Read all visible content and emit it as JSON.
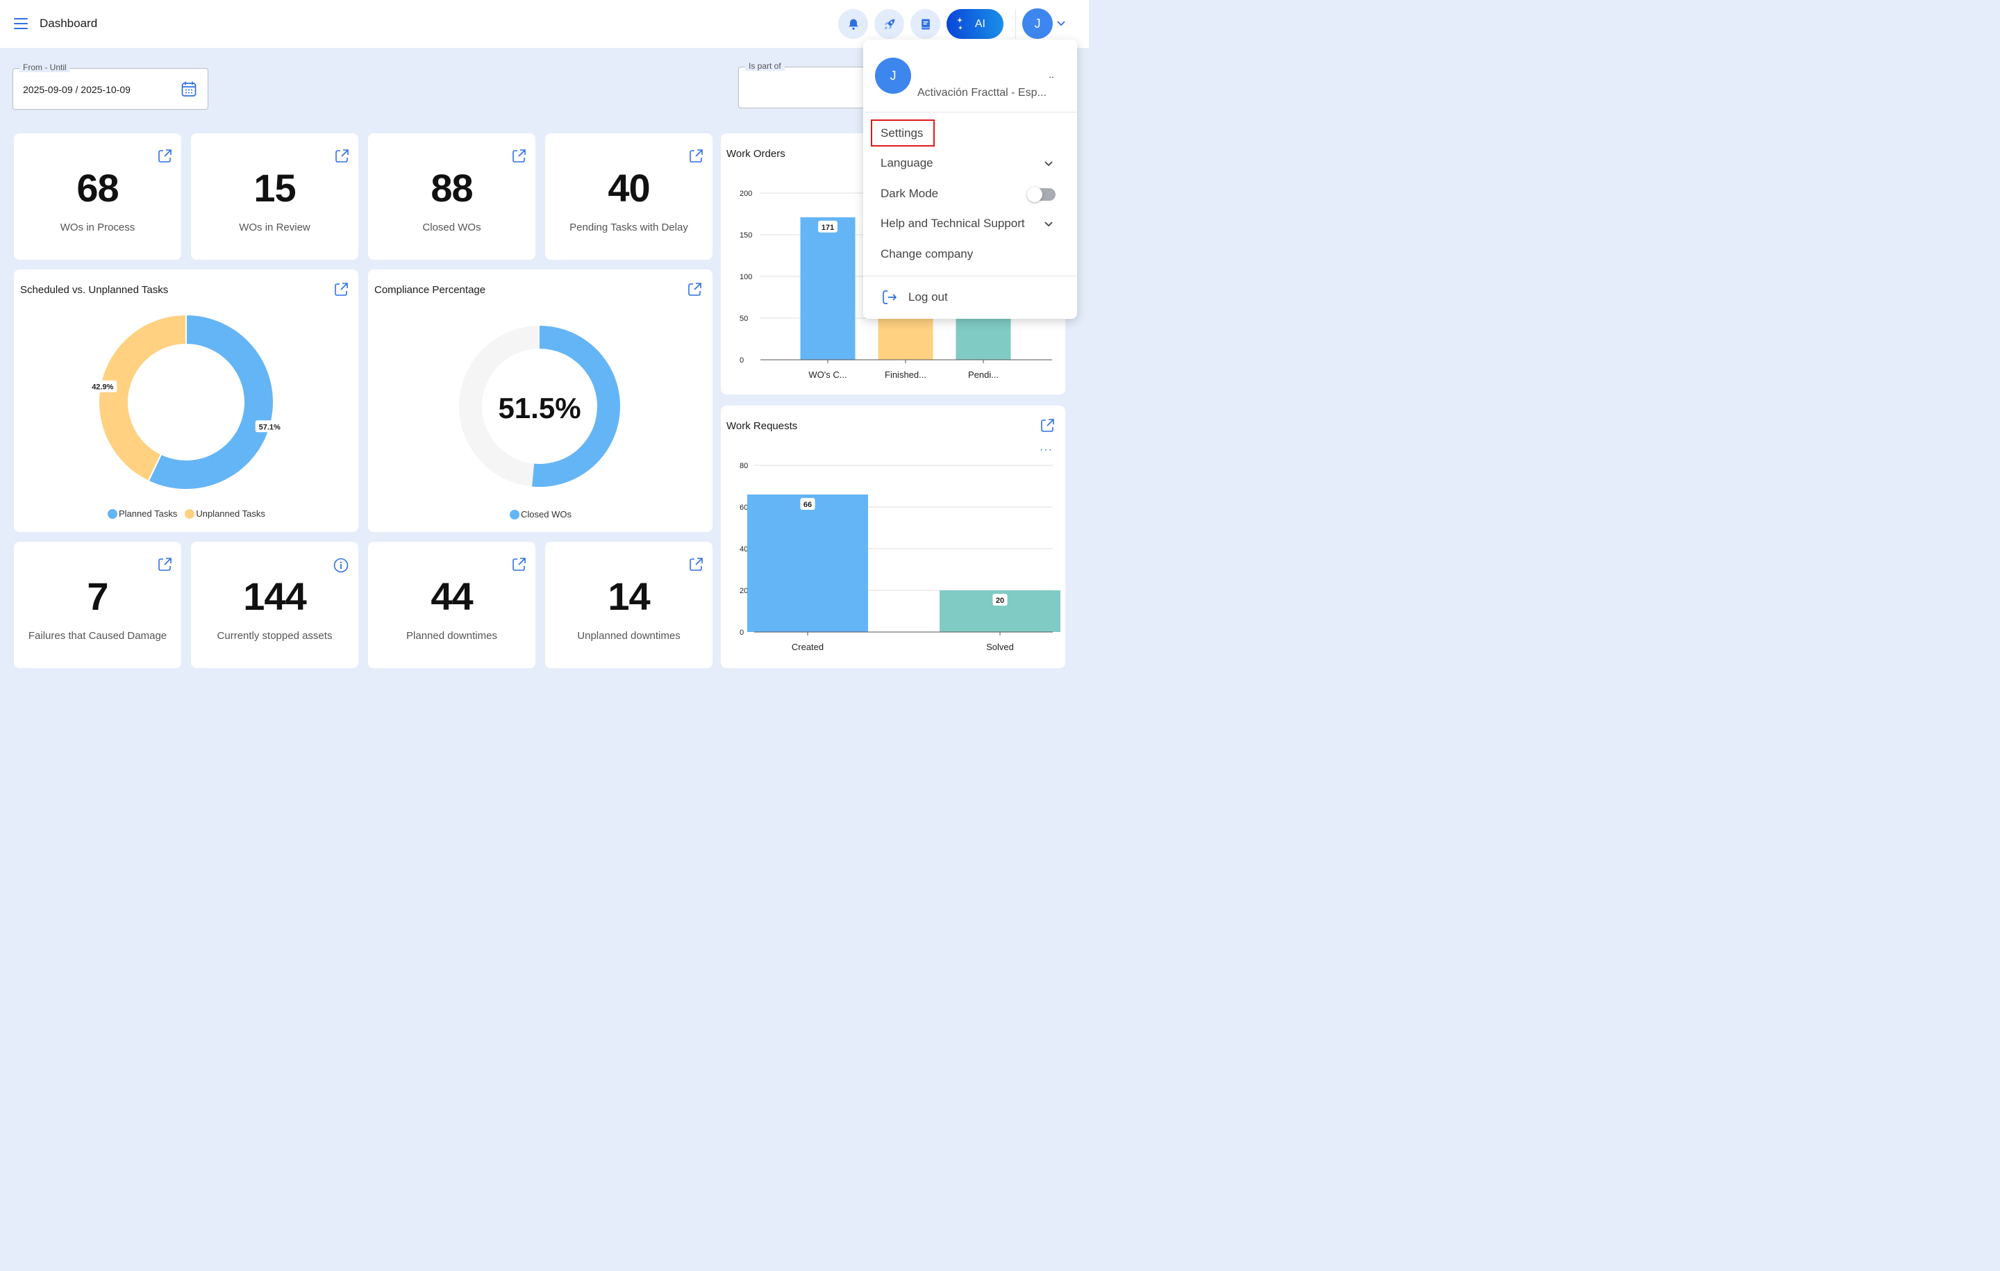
{
  "app": {
    "title": "Dashboard"
  },
  "topbar": {
    "ai_label": "AI",
    "user_initial": "J"
  },
  "filters": {
    "date_range": {
      "label": "From - Until",
      "value": "2025-09-09 / 2025-10-09"
    },
    "is_part_of": {
      "label": "Is part of",
      "value": ""
    }
  },
  "stats_top": [
    {
      "value": "68",
      "label": "WOs in Process"
    },
    {
      "value": "15",
      "label": "WOs in Review"
    },
    {
      "value": "88",
      "label": "Closed WOs"
    },
    {
      "value": "40",
      "label": "Pending Tasks with Delay"
    }
  ],
  "stats_bottom": [
    {
      "value": "7",
      "label": "Failures that Caused Damage"
    },
    {
      "value": "144",
      "label": "Currently stopped assets"
    },
    {
      "value": "44",
      "label": "Planned downtimes"
    },
    {
      "value": "14",
      "label": "Unplanned downtimes"
    }
  ],
  "colors": {
    "blue": "#64b5f6",
    "yellow": "#ffd180",
    "teal": "#80cbc4",
    "track": "#f5f5f5",
    "accent": "#2f6fe4"
  },
  "chart_data": [
    {
      "type": "pie",
      "title": "Scheduled vs. Unplanned Tasks",
      "categories": [
        "Planned Tasks",
        "Unplanned Tasks"
      ],
      "values": [
        57.1,
        42.9
      ],
      "labels": [
        "57.1%",
        "42.9%"
      ],
      "legend": "bottom"
    },
    {
      "type": "pie",
      "title": "Compliance Percentage",
      "categories": [
        "Closed WOs"
      ],
      "values": [
        51.5
      ],
      "center_label": "51.5%",
      "legend": "bottom"
    },
    {
      "type": "bar",
      "title": "Work Orders",
      "categories": [
        "WO's C...",
        "Finished...",
        "Pendi..."
      ],
      "values": [
        171,
        null,
        null
      ],
      "value_labels": [
        "171",
        "",
        ""
      ],
      "ylim": [
        0,
        200
      ],
      "yticks": [
        "0",
        "50",
        "100",
        "150",
        "200"
      ],
      "grid": true
    },
    {
      "type": "bar",
      "title": "Work Requests",
      "categories": [
        "Created",
        "Solved"
      ],
      "values": [
        66,
        20
      ],
      "value_labels": [
        "66",
        "20"
      ],
      "ylim": [
        0,
        80
      ],
      "yticks": [
        "0",
        "20",
        "40",
        "60",
        "80"
      ],
      "grid": true,
      "more_label": "···"
    }
  ],
  "user_menu": {
    "initial": "J",
    "name": "..",
    "company": "Activación Fracttal - Esp...",
    "items": {
      "settings": "Settings",
      "language": "Language",
      "dark_mode": "Dark Mode",
      "help": "Help and Technical Support",
      "change_company": "Change company",
      "logout": "Log out"
    },
    "dark_mode_on": false
  }
}
